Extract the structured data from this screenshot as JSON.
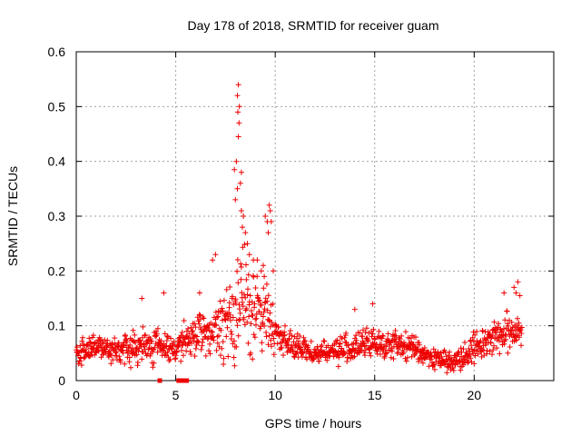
{
  "chart_data": {
    "type": "scatter",
    "title": "Day 178 of 2018, SRMTID for receiver guam",
    "xlabel": "GPS time / hours",
    "ylabel": "SRMTID / TECUs",
    "xlim": [
      0,
      24
    ],
    "ylim": [
      0,
      0.6
    ],
    "xticks": [
      0,
      5,
      10,
      15,
      20
    ],
    "yticks": [
      0,
      0.1,
      0.2,
      0.3,
      0.4,
      0.5,
      0.6
    ],
    "grid": true,
    "marker": "+",
    "color": "#ee0000",
    "envelope": {
      "hours": [
        0,
        1,
        2,
        3,
        4,
        5,
        6,
        7,
        7.5,
        8,
        8.3,
        8.6,
        9,
        9.5,
        10,
        11,
        12,
        13,
        14,
        15,
        16,
        17,
        18,
        19,
        20,
        21,
        22,
        22.4
      ],
      "center": [
        0.05,
        0.06,
        0.055,
        0.06,
        0.065,
        0.06,
        0.08,
        0.09,
        0.1,
        0.13,
        0.15,
        0.14,
        0.12,
        0.12,
        0.09,
        0.06,
        0.05,
        0.055,
        0.06,
        0.07,
        0.065,
        0.06,
        0.04,
        0.035,
        0.06,
        0.08,
        0.09,
        0.1
      ],
      "spread": [
        0.03,
        0.03,
        0.035,
        0.04,
        0.04,
        0.035,
        0.05,
        0.06,
        0.08,
        0.13,
        0.15,
        0.12,
        0.08,
        0.1,
        0.04,
        0.03,
        0.025,
        0.03,
        0.035,
        0.04,
        0.03,
        0.03,
        0.025,
        0.025,
        0.035,
        0.045,
        0.05,
        0.05
      ]
    },
    "highlights": [
      {
        "x": 8.15,
        "y": 0.54
      },
      {
        "x": 8.1,
        "y": 0.52
      },
      {
        "x": 8.2,
        "y": 0.5
      },
      {
        "x": 8.12,
        "y": 0.49
      },
      {
        "x": 8.18,
        "y": 0.47
      },
      {
        "x": 8.15,
        "y": 0.445
      },
      {
        "x": 8.05,
        "y": 0.4
      },
      {
        "x": 7.95,
        "y": 0.385
      },
      {
        "x": 8.3,
        "y": 0.38
      },
      {
        "x": 8.25,
        "y": 0.36
      },
      {
        "x": 8.1,
        "y": 0.35
      },
      {
        "x": 8.0,
        "y": 0.33
      },
      {
        "x": 8.3,
        "y": 0.31
      },
      {
        "x": 8.4,
        "y": 0.3
      },
      {
        "x": 8.35,
        "y": 0.28
      },
      {
        "x": 8.5,
        "y": 0.27
      },
      {
        "x": 8.6,
        "y": 0.25
      },
      {
        "x": 8.7,
        "y": 0.23
      },
      {
        "x": 8.9,
        "y": 0.22
      },
      {
        "x": 9.1,
        "y": 0.22
      },
      {
        "x": 9.3,
        "y": 0.2
      },
      {
        "x": 9.45,
        "y": 0.19
      },
      {
        "x": 9.5,
        "y": 0.3
      },
      {
        "x": 9.6,
        "y": 0.29
      },
      {
        "x": 9.7,
        "y": 0.32
      },
      {
        "x": 9.75,
        "y": 0.31
      },
      {
        "x": 9.8,
        "y": 0.29
      },
      {
        "x": 9.65,
        "y": 0.27
      },
      {
        "x": 9.4,
        "y": 0.21
      },
      {
        "x": 9.9,
        "y": 0.2
      },
      {
        "x": 7.0,
        "y": 0.23
      },
      {
        "x": 6.85,
        "y": 0.22
      },
      {
        "x": 6.2,
        "y": 0.16
      },
      {
        "x": 4.4,
        "y": 0.16
      },
      {
        "x": 3.3,
        "y": 0.15
      },
      {
        "x": 21.5,
        "y": 0.16
      },
      {
        "x": 22.0,
        "y": 0.17
      },
      {
        "x": 22.2,
        "y": 0.18
      },
      {
        "x": 22.1,
        "y": 0.16
      },
      {
        "x": 22.3,
        "y": 0.155
      },
      {
        "x": 14.0,
        "y": 0.13
      },
      {
        "x": 14.9,
        "y": 0.14
      }
    ],
    "zero_points": [
      4.2,
      5.15,
      5.3,
      5.45,
      5.55
    ]
  }
}
